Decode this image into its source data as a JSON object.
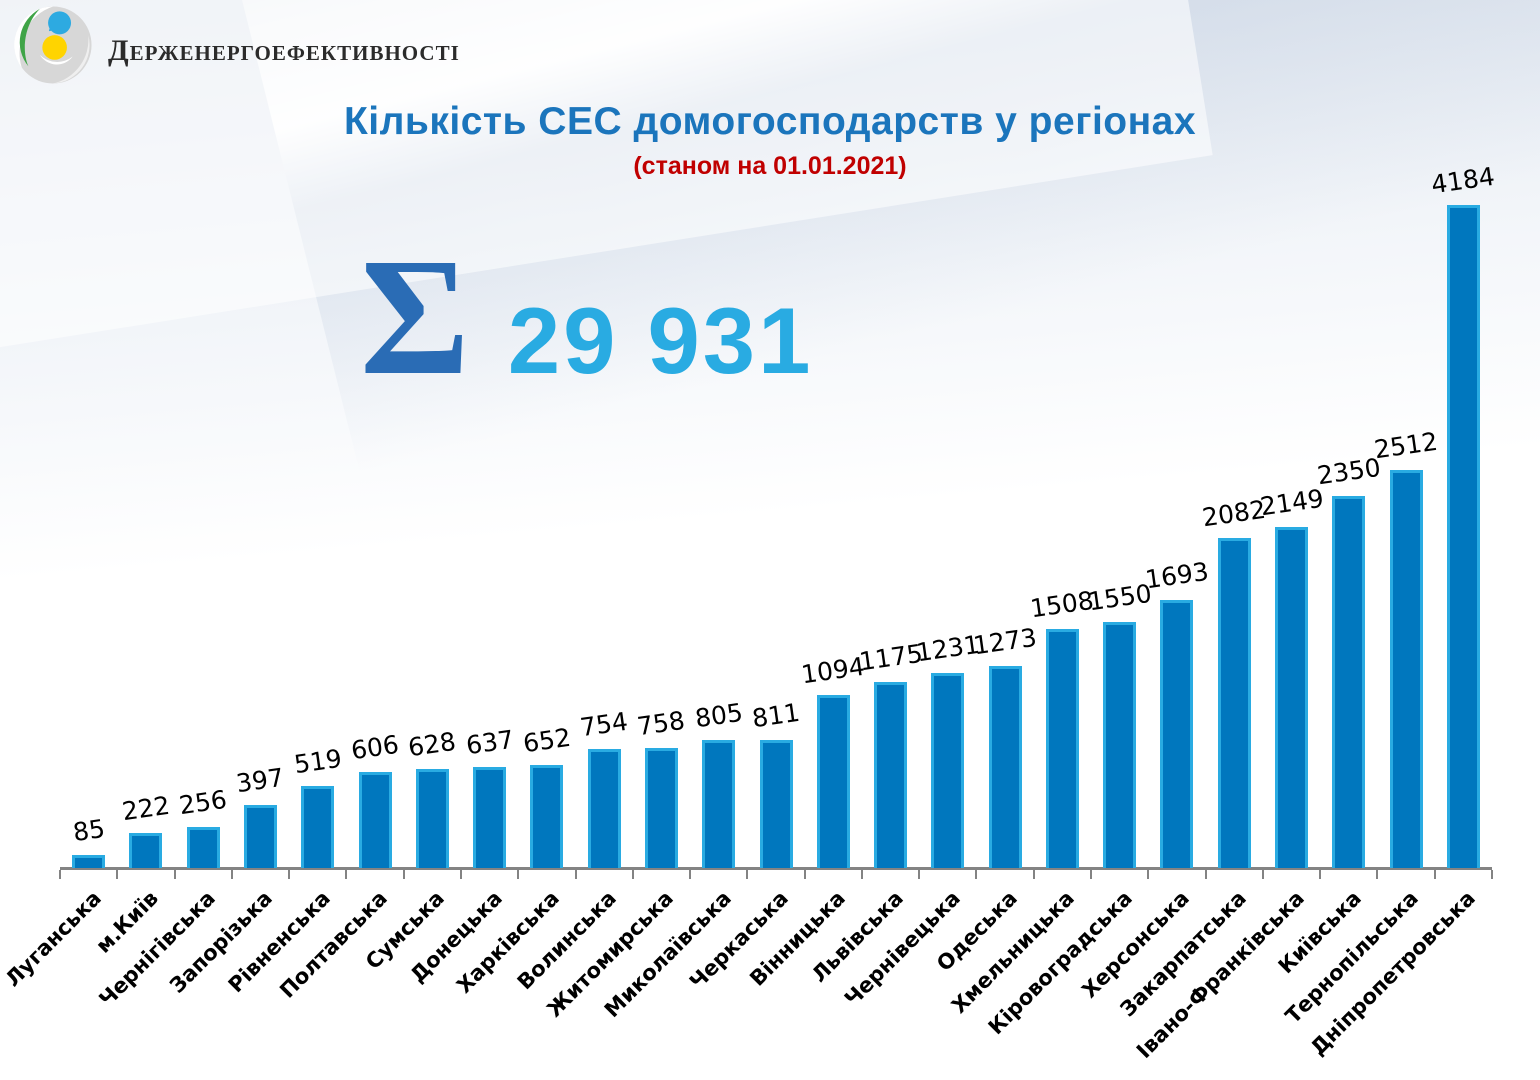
{
  "header": {
    "agency_name": "Держенергоефективності"
  },
  "title": "Кількість СЕС домогосподарств у регіонах",
  "subtitle": "(станом на 01.01.2021)",
  "total": {
    "sigma_symbol": "Σ",
    "display_value": "29 931",
    "numeric_value": 29931
  },
  "colors": {
    "title_blue": "#1b75bc",
    "subtitle_red": "#c00000",
    "sigma_blue": "#2a6cb5",
    "total_blue": "#29abe2",
    "bar_fill": "#0077be",
    "bar_border": "#29abe2",
    "axis_gray": "#838383",
    "label_black": "#000000"
  },
  "chart_data": {
    "type": "bar",
    "title": "Кількість СЕС домогосподарств у регіонах",
    "subtitle": "(станом на 01.01.2021)",
    "categories": [
      "Луганська",
      "м.Київ",
      "Чернігівська",
      "Запорізька",
      "Рівненська",
      "Полтавська",
      "Сумська",
      "Донецька",
      "Харківська",
      "Волинська",
      "Житомирська",
      "Миколаївська",
      "Черкаська",
      "Вінницька",
      "Львівська",
      "Чернівецька",
      "Одеська",
      "Хмельницька",
      "Кіровоградська",
      "Херсонська",
      "Закарпатська",
      "Івано-Франківська",
      "Київська",
      "Тернопільська",
      "Дніпропетровська"
    ],
    "values": [
      85,
      222,
      256,
      397,
      519,
      606,
      628,
      637,
      652,
      754,
      758,
      805,
      811,
      1094,
      1175,
      1231,
      1273,
      1508,
      1550,
      1693,
      2082,
      2149,
      2350,
      2512,
      4184
    ],
    "total": 29931,
    "xlabel": "",
    "ylabel": "",
    "ylim": [
      0,
      4184
    ],
    "grid": false,
    "legend": false,
    "data_labels": true,
    "category_label_rotation_deg": 45
  }
}
